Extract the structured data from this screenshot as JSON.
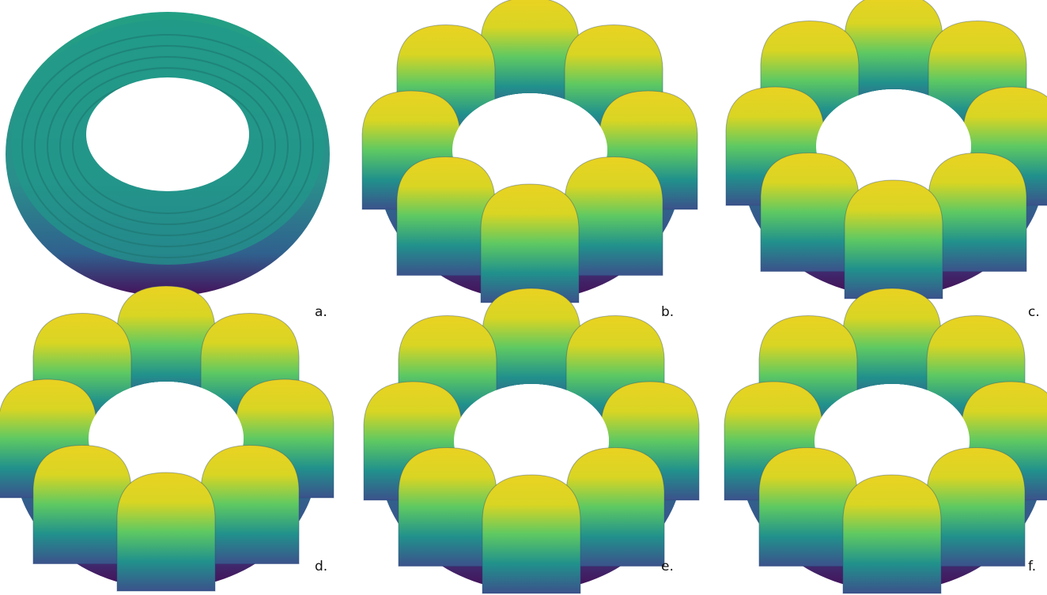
{
  "panels": [
    {
      "label": "a."
    },
    {
      "label": "b."
    },
    {
      "label": "c."
    },
    {
      "label": "d."
    },
    {
      "label": "e."
    },
    {
      "label": "f."
    }
  ]
}
